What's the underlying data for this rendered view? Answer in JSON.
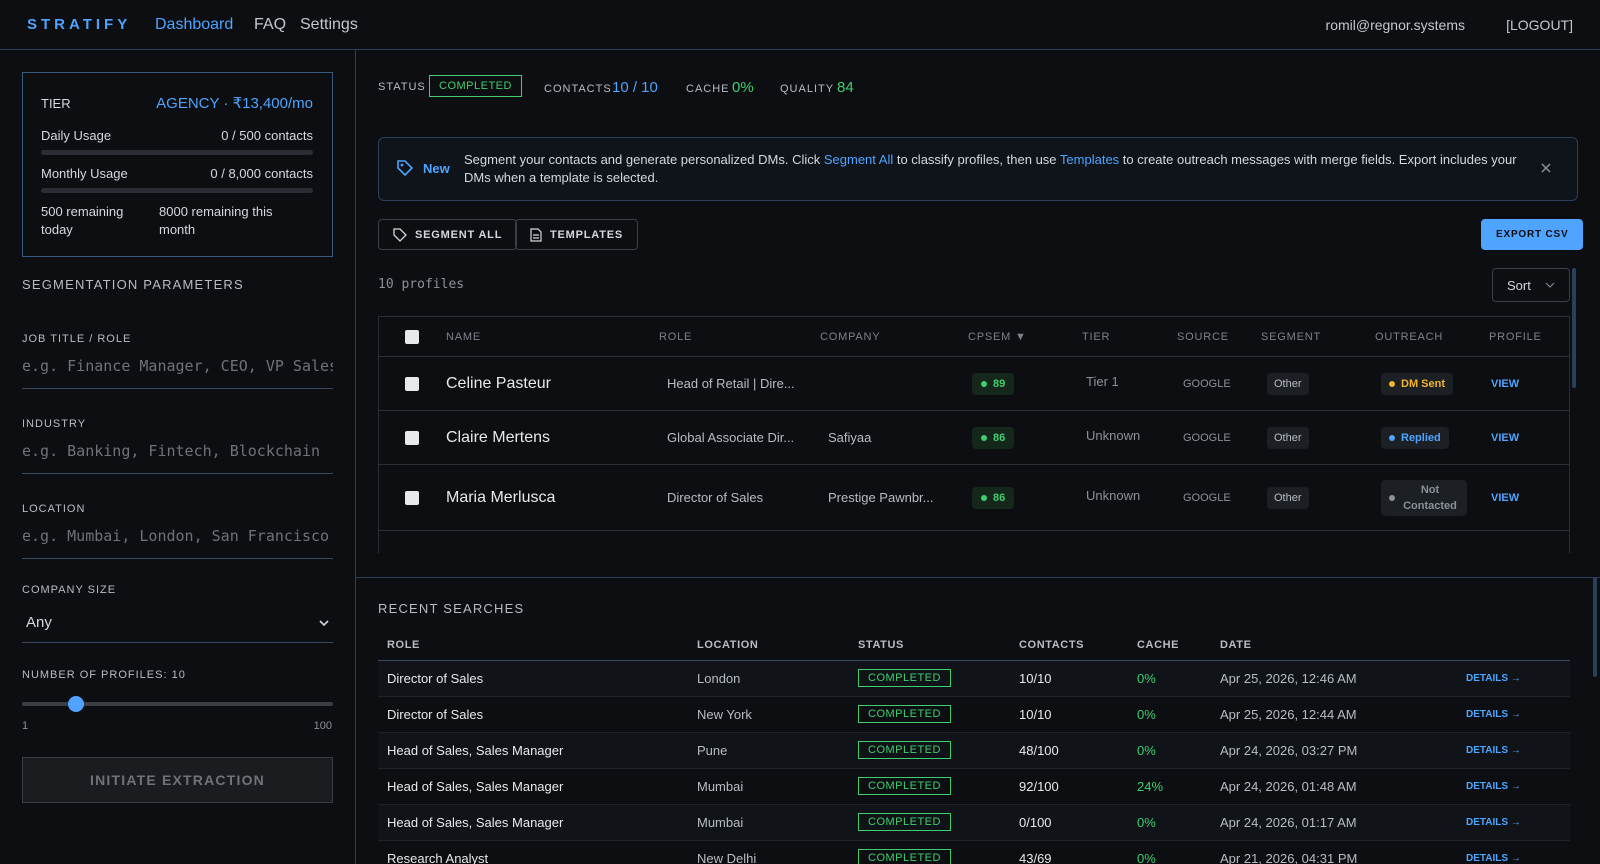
{
  "nav": {
    "brand": "STRATIFY",
    "links": [
      "Dashboard",
      "FAQ",
      "Settings"
    ],
    "user": "romil@regnor.systems",
    "logout": "[LOGOUT]"
  },
  "tier_card": {
    "tier_label": "TIER",
    "tier_value": "AGENCY · ₹13,400/mo",
    "daily_label": "Daily Usage",
    "daily_value": "0 / 500 contacts",
    "monthly_label": "Monthly Usage",
    "monthly_value": "0 / 8,000 contacts",
    "remaining_today": "500 remaining today",
    "remaining_month": "8000 remaining this month"
  },
  "params": {
    "title": "SEGMENTATION PARAMETERS",
    "fields": [
      {
        "label": "JOB TITLE / ROLE",
        "placeholder": "e.g. Finance Manager, CEO, VP Sales"
      },
      {
        "label": "INDUSTRY",
        "placeholder": "e.g. Banking, Fintech, Blockchain"
      },
      {
        "label": "LOCATION",
        "placeholder": "e.g. Mumbai, London, San Francisco"
      }
    ],
    "company_size_label": "COMPANY SIZE",
    "company_size_value": "Any",
    "profiles_label": "NUMBER OF PROFILES:",
    "slider": {
      "min": 1,
      "max": 100,
      "value": 10
    },
    "button": "INITIATE EXTRACTION"
  },
  "status_bar": {
    "status_label": "STATUS",
    "status": "COMPLETED",
    "contacts_label": "CONTACTS",
    "contacts": "10 / 10",
    "cache_label": "CACHE",
    "cache": "0%",
    "quality_label": "QUALITY",
    "quality": 84
  },
  "banner": {
    "tag": "New",
    "parts": [
      {
        "text": "Segment your contacts and generate personalized DMs. Click ",
        "link": false
      },
      {
        "text": "Segment All",
        "link": true
      },
      {
        "text": " to classify profiles, then use ",
        "link": false
      },
      {
        "text": "Templates",
        "link": true
      },
      {
        "text": " to create outreach messages with merge fields. Export includes your DMs when a template is selected.",
        "link": false
      }
    ]
  },
  "toolbar": {
    "segment_all": "SEGMENT ALL",
    "templates": "TEMPLATES",
    "export": "EXPORT CSV",
    "count": "10 profiles",
    "sort": "Sort"
  },
  "profiles": {
    "headers": [
      "NAME",
      "ROLE",
      "COMPANY",
      "CPSEM ▼",
      "TIER",
      "SOURCE",
      "SEGMENT",
      "OUTREACH",
      "PROFILE"
    ],
    "rows": [
      {
        "name": "Celine Pasteur",
        "role": "Head of Retail | Dire...",
        "company": null,
        "cpsem": 89,
        "tier": "Tier 1",
        "source": "GOOGLE",
        "segment": "Other",
        "outreach": {
          "label": "DM Sent",
          "color": "#f2b52b"
        },
        "profile": "VIEW"
      },
      {
        "name": "Claire Mertens",
        "role": "Global Associate Dir...",
        "company": "Safiyaa",
        "cpsem": 86,
        "tier": "Unknown",
        "source": "GOOGLE",
        "segment": "Other",
        "outreach": {
          "label": "Replied",
          "color": "#4ea4ff"
        },
        "profile": "VIEW"
      },
      {
        "name": "Maria Merlusca",
        "role": "Director of Sales",
        "company": "Prestige Pawnbr...",
        "cpsem": 86,
        "tier": "Unknown",
        "source": "GOOGLE",
        "segment": "Other",
        "outreach": {
          "label": "Not Contacted",
          "color": "#8a8f98"
        },
        "profile": "VIEW"
      }
    ]
  },
  "recent": {
    "title": "RECENT SEARCHES",
    "headers": [
      "ROLE",
      "LOCATION",
      "STATUS",
      "CONTACTS",
      "CACHE",
      "DATE"
    ],
    "rows": [
      {
        "role": "Director of Sales",
        "location": "London",
        "status": "COMPLETED",
        "contacts": "10/10",
        "cache": "0%",
        "date": "Apr 25, 2026, 12:46 AM",
        "details": "DETAILS →"
      },
      {
        "role": "Director of Sales",
        "location": "New York",
        "status": "COMPLETED",
        "contacts": "10/10",
        "cache": "0%",
        "date": "Apr 25, 2026, 12:44 AM",
        "details": "DETAILS →"
      },
      {
        "role": "Head of Sales, Sales Manager",
        "location": "Pune",
        "status": "COMPLETED",
        "contacts": "48/100",
        "cache": "0%",
        "date": "Apr 24, 2026, 03:27 PM",
        "details": "DETAILS →"
      },
      {
        "role": "Head of Sales, Sales Manager",
        "location": "Mumbai",
        "status": "COMPLETED",
        "contacts": "92/100",
        "cache": "24%",
        "date": "Apr 24, 2026, 01:48 AM",
        "details": "DETAILS →"
      },
      {
        "role": "Head of Sales, Sales Manager",
        "location": "Mumbai",
        "status": "COMPLETED",
        "contacts": "0/100",
        "cache": "0%",
        "date": "Apr 24, 2026, 01:17 AM",
        "details": "DETAILS →"
      },
      {
        "role": "Research Analyst",
        "location": "New Delhi",
        "status": "COMPLETED",
        "contacts": "43/69",
        "cache": "0%",
        "date": "Apr 21, 2026, 04:31 PM",
        "details": "DETAILS →"
      }
    ]
  }
}
